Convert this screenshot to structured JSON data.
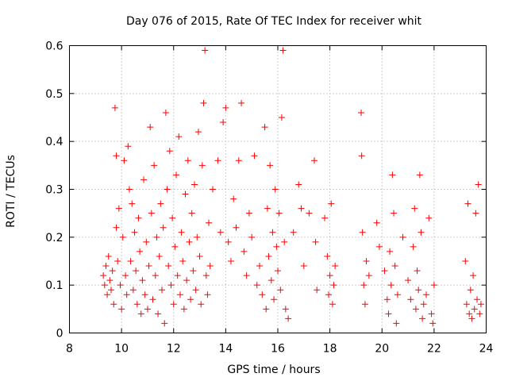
{
  "chart_data": {
    "type": "scatter",
    "title": "Day 076 of 2015, Rate Of TEC Index for receiver whit",
    "xlabel": "GPS time / hours",
    "ylabel": "ROTI / TECUs",
    "xlim": [
      8,
      24
    ],
    "ylim": [
      0,
      0.6
    ],
    "xticks": [
      8,
      10,
      12,
      14,
      16,
      18,
      20,
      22,
      24
    ],
    "yticks": [
      0,
      0.1,
      0.2,
      0.3,
      0.4,
      0.5,
      0.6
    ],
    "xtick_labels": [
      "8",
      "10",
      "12",
      "14",
      "16",
      "18",
      "20",
      "22",
      "24"
    ],
    "ytick_labels": [
      "0",
      "0.1",
      "0.2",
      "0.3",
      "0.4",
      "0.5",
      "0.6"
    ],
    "grid": true,
    "marker": "plus",
    "series": [
      {
        "name": "ROTI",
        "color": "#ff0000",
        "points": [
          [
            9.3,
            0.12
          ],
          [
            9.35,
            0.1
          ],
          [
            9.4,
            0.14
          ],
          [
            9.45,
            0.08
          ],
          [
            9.5,
            0.16
          ],
          [
            9.55,
            0.11
          ],
          [
            9.6,
            0.09
          ],
          [
            9.65,
            0.13
          ],
          [
            9.7,
            0.06
          ],
          [
            9.75,
            0.47
          ],
          [
            9.8,
            0.22
          ],
          [
            9.8,
            0.37
          ],
          [
            9.85,
            0.15
          ],
          [
            9.9,
            0.26
          ],
          [
            9.95,
            0.1
          ],
          [
            10.0,
            0.05
          ],
          [
            10.05,
            0.2
          ],
          [
            10.1,
            0.36
          ],
          [
            10.15,
            0.12
          ],
          [
            10.2,
            0.08
          ],
          [
            10.25,
            0.39
          ],
          [
            10.3,
            0.3
          ],
          [
            10.35,
            0.15
          ],
          [
            10.4,
            0.27
          ],
          [
            10.45,
            0.09
          ],
          [
            10.5,
            0.21
          ],
          [
            10.55,
            0.13
          ],
          [
            10.6,
            0.06
          ],
          [
            10.65,
            0.24
          ],
          [
            10.7,
            0.17
          ],
          [
            10.75,
            0.04
          ],
          [
            10.8,
            0.11
          ],
          [
            10.85,
            0.32
          ],
          [
            10.9,
            0.08
          ],
          [
            10.95,
            0.19
          ],
          [
            11.0,
            0.05
          ],
          [
            11.05,
            0.14
          ],
          [
            11.1,
            0.43
          ],
          [
            11.15,
            0.25
          ],
          [
            11.2,
            0.07
          ],
          [
            11.25,
            0.35
          ],
          [
            11.3,
            0.12
          ],
          [
            11.35,
            0.2
          ],
          [
            11.4,
            0.04
          ],
          [
            11.45,
            0.16
          ],
          [
            11.5,
            0.27
          ],
          [
            11.55,
            0.09
          ],
          [
            11.6,
            0.22
          ],
          [
            11.65,
            0.02
          ],
          [
            11.7,
            0.46
          ],
          [
            11.75,
            0.3
          ],
          [
            11.8,
            0.14
          ],
          [
            11.85,
            0.38
          ],
          [
            11.9,
            0.1
          ],
          [
            11.95,
            0.24
          ],
          [
            12.0,
            0.06
          ],
          [
            12.05,
            0.18
          ],
          [
            12.1,
            0.33
          ],
          [
            12.15,
            0.12
          ],
          [
            12.2,
            0.41
          ],
          [
            12.25,
            0.08
          ],
          [
            12.3,
            0.21
          ],
          [
            12.35,
            0.15
          ],
          [
            12.4,
            0.05
          ],
          [
            12.45,
            0.29
          ],
          [
            12.5,
            0.11
          ],
          [
            12.55,
            0.36
          ],
          [
            12.6,
            0.19
          ],
          [
            12.65,
            0.07
          ],
          [
            12.7,
            0.25
          ],
          [
            12.75,
            0.13
          ],
          [
            12.8,
            0.31
          ],
          [
            12.85,
            0.09
          ],
          [
            12.9,
            0.2
          ],
          [
            12.95,
            0.42
          ],
          [
            13.0,
            0.16
          ],
          [
            13.05,
            0.06
          ],
          [
            13.1,
            0.35
          ],
          [
            13.15,
            0.48
          ],
          [
            13.2,
            0.59
          ],
          [
            13.25,
            0.12
          ],
          [
            13.3,
            0.08
          ],
          [
            13.35,
            0.23
          ],
          [
            13.4,
            0.14
          ],
          [
            13.5,
            0.3
          ],
          [
            13.7,
            0.36
          ],
          [
            13.8,
            0.21
          ],
          [
            13.9,
            0.44
          ],
          [
            14.0,
            0.47
          ],
          [
            14.1,
            0.19
          ],
          [
            14.2,
            0.15
          ],
          [
            14.3,
            0.28
          ],
          [
            14.4,
            0.22
          ],
          [
            14.5,
            0.36
          ],
          [
            14.6,
            0.48
          ],
          [
            14.7,
            0.17
          ],
          [
            14.8,
            0.12
          ],
          [
            14.9,
            0.25
          ],
          [
            15.0,
            0.2
          ],
          [
            15.1,
            0.37
          ],
          [
            15.2,
            0.1
          ],
          [
            15.3,
            0.14
          ],
          [
            15.4,
            0.08
          ],
          [
            15.5,
            0.43
          ],
          [
            15.55,
            0.05
          ],
          [
            15.6,
            0.26
          ],
          [
            15.65,
            0.16
          ],
          [
            15.7,
            0.35
          ],
          [
            15.75,
            0.11
          ],
          [
            15.8,
            0.21
          ],
          [
            15.85,
            0.07
          ],
          [
            15.9,
            0.3
          ],
          [
            15.95,
            0.18
          ],
          [
            16.0,
            0.13
          ],
          [
            16.05,
            0.25
          ],
          [
            16.1,
            0.09
          ],
          [
            16.15,
            0.45
          ],
          [
            16.2,
            0.59
          ],
          [
            16.25,
            0.19
          ],
          [
            16.3,
            0.05
          ],
          [
            16.4,
            0.03
          ],
          [
            16.6,
            0.21
          ],
          [
            16.8,
            0.31
          ],
          [
            16.9,
            0.26
          ],
          [
            17.0,
            0.14
          ],
          [
            17.2,
            0.25
          ],
          [
            17.4,
            0.36
          ],
          [
            17.45,
            0.19
          ],
          [
            17.5,
            0.09
          ],
          [
            17.8,
            0.24
          ],
          [
            17.9,
            0.16
          ],
          [
            17.95,
            0.08
          ],
          [
            18.0,
            0.12
          ],
          [
            18.05,
            0.27
          ],
          [
            18.1,
            0.06
          ],
          [
            18.15,
            0.1
          ],
          [
            18.2,
            0.14
          ],
          [
            19.2,
            0.46
          ],
          [
            19.22,
            0.37
          ],
          [
            19.25,
            0.21
          ],
          [
            19.3,
            0.1
          ],
          [
            19.35,
            0.06
          ],
          [
            19.4,
            0.15
          ],
          [
            19.5,
            0.12
          ],
          [
            19.8,
            0.23
          ],
          [
            19.9,
            0.18
          ],
          [
            20.1,
            0.13
          ],
          [
            20.2,
            0.07
          ],
          [
            20.25,
            0.04
          ],
          [
            20.3,
            0.17
          ],
          [
            20.35,
            0.1
          ],
          [
            20.4,
            0.33
          ],
          [
            20.45,
            0.25
          ],
          [
            20.5,
            0.14
          ],
          [
            20.55,
            0.02
          ],
          [
            20.6,
            0.08
          ],
          [
            20.8,
            0.2
          ],
          [
            21.0,
            0.11
          ],
          [
            21.1,
            0.07
          ],
          [
            21.2,
            0.18
          ],
          [
            21.25,
            0.26
          ],
          [
            21.3,
            0.05
          ],
          [
            21.35,
            0.13
          ],
          [
            21.4,
            0.09
          ],
          [
            21.45,
            0.33
          ],
          [
            21.5,
            0.21
          ],
          [
            21.55,
            0.03
          ],
          [
            21.6,
            0.06
          ],
          [
            21.7,
            0.08
          ],
          [
            21.8,
            0.24
          ],
          [
            21.9,
            0.04
          ],
          [
            21.95,
            0.02
          ],
          [
            22.0,
            0.1
          ],
          [
            23.2,
            0.15
          ],
          [
            23.25,
            0.06
          ],
          [
            23.3,
            0.27
          ],
          [
            23.35,
            0.04
          ],
          [
            23.4,
            0.09
          ],
          [
            23.45,
            0.03
          ],
          [
            23.5,
            0.12
          ],
          [
            23.55,
            0.05
          ],
          [
            23.6,
            0.25
          ],
          [
            23.65,
            0.07
          ],
          [
            23.7,
            0.31
          ],
          [
            23.75,
            0.04
          ],
          [
            23.8,
            0.06
          ]
        ]
      }
    ]
  }
}
